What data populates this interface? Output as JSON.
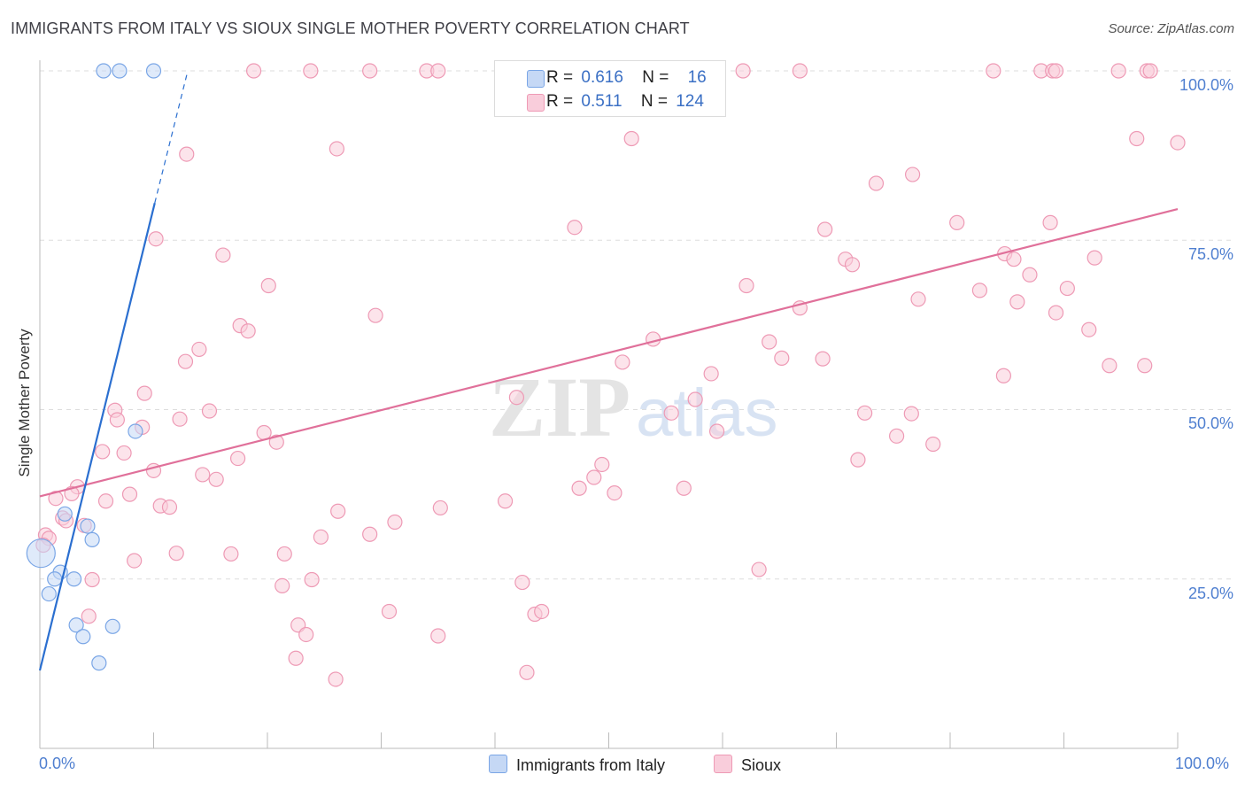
{
  "title": "IMMIGRANTS FROM ITALY VS SIOUX SINGLE MOTHER POVERTY CORRELATION CHART",
  "source": "Source: ZipAtlas.com",
  "watermark": {
    "zip": "ZIP",
    "atlas": "atlas"
  },
  "legend": {
    "r_label": "R =",
    "n_label": "N =",
    "rows": [
      {
        "r": "0.616",
        "n": "16"
      },
      {
        "r": "0.511",
        "n": "124"
      }
    ]
  },
  "chart_data": {
    "type": "scatter",
    "title": "IMMIGRANTS FROM ITALY VS SIOUX SINGLE MOTHER POVERTY CORRELATION CHART",
    "xlabel": "",
    "ylabel": "Single Mother Poverty",
    "xlim": [
      0,
      100
    ],
    "ylim": [
      0,
      100
    ],
    "x_tick_labels": [
      "0.0%",
      "100.0%"
    ],
    "y_tick_labels": [
      {
        "value": 25,
        "label": "25.0%"
      },
      {
        "value": 50,
        "label": "50.0%"
      },
      {
        "value": 75,
        "label": "75.0%"
      },
      {
        "value": 100,
        "label": "100.0%"
      }
    ],
    "grid": true,
    "series": [
      {
        "name": "Immigrants from Italy",
        "color": "#7aa6e6",
        "fill": "#c5d8f5",
        "line_color": "#2b6fd0",
        "trend": {
          "x0": 0,
          "y0": 11.5,
          "x1": 10.1,
          "y1": 80.5,
          "dash_to_x": 13.0,
          "dash_to_y": 100
        },
        "points": [
          {
            "x": 5.6,
            "y": 100
          },
          {
            "x": 7.0,
            "y": 100
          },
          {
            "x": 10.0,
            "y": 100
          },
          {
            "x": 8.4,
            "y": 46.8
          },
          {
            "x": 2.2,
            "y": 34.6
          },
          {
            "x": 4.2,
            "y": 32.8
          },
          {
            "x": 4.6,
            "y": 30.8
          },
          {
            "x": 0.1,
            "y": 28.8,
            "big": true
          },
          {
            "x": 1.8,
            "y": 26.0
          },
          {
            "x": 1.3,
            "y": 25.0
          },
          {
            "x": 3.0,
            "y": 25.0
          },
          {
            "x": 0.8,
            "y": 22.8
          },
          {
            "x": 3.2,
            "y": 18.2
          },
          {
            "x": 3.8,
            "y": 16.5
          },
          {
            "x": 6.4,
            "y": 18.0
          },
          {
            "x": 5.2,
            "y": 12.6
          }
        ]
      },
      {
        "name": "Sioux",
        "color": "#ee9ab5",
        "fill": "#f9cddb",
        "line_color": "#e0709a",
        "trend": {
          "x0": 0,
          "y0": 37.2,
          "x1": 100,
          "y1": 79.6
        },
        "points": [
          {
            "x": 18.8,
            "y": 100
          },
          {
            "x": 23.8,
            "y": 100
          },
          {
            "x": 29.0,
            "y": 100
          },
          {
            "x": 34.0,
            "y": 100
          },
          {
            "x": 35.0,
            "y": 100
          },
          {
            "x": 51.5,
            "y": 100
          },
          {
            "x": 58.5,
            "y": 100
          },
          {
            "x": 61.8,
            "y": 100
          },
          {
            "x": 66.8,
            "y": 100
          },
          {
            "x": 83.8,
            "y": 100
          },
          {
            "x": 88.0,
            "y": 100
          },
          {
            "x": 89.0,
            "y": 100
          },
          {
            "x": 89.3,
            "y": 100
          },
          {
            "x": 94.8,
            "y": 100
          },
          {
            "x": 97.3,
            "y": 100
          },
          {
            "x": 97.6,
            "y": 100
          },
          {
            "x": 12.9,
            "y": 87.7
          },
          {
            "x": 26.1,
            "y": 88.5
          },
          {
            "x": 52.0,
            "y": 90.0
          },
          {
            "x": 96.4,
            "y": 90.0
          },
          {
            "x": 100.0,
            "y": 89.4
          },
          {
            "x": 73.5,
            "y": 83.4
          },
          {
            "x": 76.7,
            "y": 84.7
          },
          {
            "x": 47.0,
            "y": 76.9
          },
          {
            "x": 69.0,
            "y": 76.6
          },
          {
            "x": 80.6,
            "y": 77.6
          },
          {
            "x": 88.8,
            "y": 77.6
          },
          {
            "x": 10.2,
            "y": 75.2
          },
          {
            "x": 16.1,
            "y": 72.8
          },
          {
            "x": 70.8,
            "y": 72.2
          },
          {
            "x": 71.4,
            "y": 71.4
          },
          {
            "x": 84.8,
            "y": 73.0
          },
          {
            "x": 85.6,
            "y": 72.2
          },
          {
            "x": 92.7,
            "y": 72.4
          },
          {
            "x": 20.1,
            "y": 68.3
          },
          {
            "x": 62.1,
            "y": 68.3
          },
          {
            "x": 82.6,
            "y": 67.6
          },
          {
            "x": 87.0,
            "y": 69.9
          },
          {
            "x": 90.3,
            "y": 67.9
          },
          {
            "x": 77.2,
            "y": 66.3
          },
          {
            "x": 85.9,
            "y": 65.9
          },
          {
            "x": 66.8,
            "y": 65.0
          },
          {
            "x": 89.3,
            "y": 64.3
          },
          {
            "x": 29.5,
            "y": 63.9
          },
          {
            "x": 17.6,
            "y": 62.4
          },
          {
            "x": 18.3,
            "y": 61.6
          },
          {
            "x": 92.2,
            "y": 61.8
          },
          {
            "x": 53.9,
            "y": 60.4
          },
          {
            "x": 64.1,
            "y": 60.0
          },
          {
            "x": 14.0,
            "y": 58.9
          },
          {
            "x": 12.8,
            "y": 57.1
          },
          {
            "x": 65.2,
            "y": 57.6
          },
          {
            "x": 68.8,
            "y": 57.5
          },
          {
            "x": 51.2,
            "y": 57.0
          },
          {
            "x": 94.0,
            "y": 56.5
          },
          {
            "x": 97.1,
            "y": 56.5
          },
          {
            "x": 59.0,
            "y": 55.3
          },
          {
            "x": 84.7,
            "y": 55.0
          },
          {
            "x": 9.2,
            "y": 52.4
          },
          {
            "x": 41.9,
            "y": 51.8
          },
          {
            "x": 57.6,
            "y": 51.5
          },
          {
            "x": 6.6,
            "y": 49.9
          },
          {
            "x": 14.9,
            "y": 49.8
          },
          {
            "x": 55.5,
            "y": 49.5
          },
          {
            "x": 72.5,
            "y": 49.5
          },
          {
            "x": 76.6,
            "y": 49.4
          },
          {
            "x": 6.8,
            "y": 48.5
          },
          {
            "x": 12.3,
            "y": 48.6
          },
          {
            "x": 9.0,
            "y": 47.4
          },
          {
            "x": 59.5,
            "y": 46.8
          },
          {
            "x": 19.7,
            "y": 46.6
          },
          {
            "x": 75.3,
            "y": 46.1
          },
          {
            "x": 20.8,
            "y": 45.2
          },
          {
            "x": 78.5,
            "y": 44.9
          },
          {
            "x": 5.5,
            "y": 43.8
          },
          {
            "x": 7.4,
            "y": 43.6
          },
          {
            "x": 17.4,
            "y": 42.8
          },
          {
            "x": 71.9,
            "y": 42.6
          },
          {
            "x": 49.4,
            "y": 41.9
          },
          {
            "x": 10.0,
            "y": 41.0
          },
          {
            "x": 14.3,
            "y": 40.4
          },
          {
            "x": 15.5,
            "y": 39.7
          },
          {
            "x": 48.7,
            "y": 40.0
          },
          {
            "x": 3.3,
            "y": 38.6
          },
          {
            "x": 2.8,
            "y": 37.6
          },
          {
            "x": 47.4,
            "y": 38.4
          },
          {
            "x": 56.6,
            "y": 38.4
          },
          {
            "x": 7.9,
            "y": 37.5
          },
          {
            "x": 50.5,
            "y": 37.7
          },
          {
            "x": 1.4,
            "y": 36.9
          },
          {
            "x": 5.8,
            "y": 36.5
          },
          {
            "x": 40.9,
            "y": 36.5
          },
          {
            "x": 10.6,
            "y": 35.8
          },
          {
            "x": 11.4,
            "y": 35.6
          },
          {
            "x": 35.2,
            "y": 35.5
          },
          {
            "x": 26.2,
            "y": 35.0
          },
          {
            "x": 2.0,
            "y": 34.0
          },
          {
            "x": 2.3,
            "y": 33.6
          },
          {
            "x": 31.2,
            "y": 33.4
          },
          {
            "x": 3.9,
            "y": 32.9
          },
          {
            "x": 0.5,
            "y": 31.5
          },
          {
            "x": 0.8,
            "y": 31.0
          },
          {
            "x": 0.3,
            "y": 30.0
          },
          {
            "x": 24.7,
            "y": 31.2
          },
          {
            "x": 29.0,
            "y": 31.6
          },
          {
            "x": 12.0,
            "y": 28.8
          },
          {
            "x": 16.8,
            "y": 28.7
          },
          {
            "x": 21.5,
            "y": 28.7
          },
          {
            "x": 8.3,
            "y": 27.7
          },
          {
            "x": 63.2,
            "y": 26.4
          },
          {
            "x": 4.6,
            "y": 24.9
          },
          {
            "x": 23.9,
            "y": 24.9
          },
          {
            "x": 42.4,
            "y": 24.5
          },
          {
            "x": 21.3,
            "y": 24.0
          },
          {
            "x": 30.7,
            "y": 20.2
          },
          {
            "x": 43.5,
            "y": 19.8
          },
          {
            "x": 44.1,
            "y": 20.2
          },
          {
            "x": 4.3,
            "y": 19.5
          },
          {
            "x": 22.7,
            "y": 18.2
          },
          {
            "x": 23.4,
            "y": 16.8
          },
          {
            "x": 35.0,
            "y": 16.6
          },
          {
            "x": 22.5,
            "y": 13.3
          },
          {
            "x": 26.0,
            "y": 10.2
          },
          {
            "x": 42.8,
            "y": 11.2
          }
        ]
      }
    ]
  }
}
